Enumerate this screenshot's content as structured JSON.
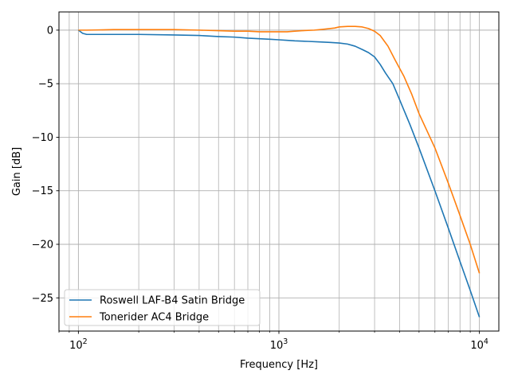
{
  "chart_data": {
    "type": "line",
    "title": "",
    "xlabel": "Frequency [Hz]",
    "ylabel": "Gain [dB]",
    "xscale": "log",
    "xlim": [
      80,
      12500
    ],
    "ylim": [
      -28.1,
      1.7
    ],
    "grid": true,
    "legend_position": "lower-left",
    "x_ticks": [
      {
        "value": 100,
        "base": "10",
        "exp": "2"
      },
      {
        "value": 1000,
        "base": "10",
        "exp": "3"
      },
      {
        "value": 10000,
        "base": "10",
        "exp": "4"
      }
    ],
    "y_ticks": [
      {
        "value": 0,
        "label": "0"
      },
      {
        "value": -5,
        "label": "−5"
      },
      {
        "value": -10,
        "label": "−10"
      },
      {
        "value": -15,
        "label": "−15"
      },
      {
        "value": -20,
        "label": "−20"
      },
      {
        "value": -25,
        "label": "−25"
      }
    ],
    "series": [
      {
        "name": "Roswell LAF-B4 Satin Bridge",
        "color": "#1f77b4",
        "x": [
          100,
          105,
          110,
          120,
          150,
          200,
          300,
          400,
          500,
          600,
          700,
          800,
          900,
          1000,
          1100,
          1200,
          1400,
          1600,
          1800,
          2000,
          2200,
          2400,
          2600,
          2800,
          3000,
          3200,
          3400,
          3700,
          4000,
          4500,
          5000,
          6000,
          7000,
          8000,
          9000,
          10000
        ],
        "y": [
          0.0,
          -0.3,
          -0.4,
          -0.4,
          -0.4,
          -0.4,
          -0.45,
          -0.5,
          -0.6,
          -0.65,
          -0.75,
          -0.8,
          -0.85,
          -0.9,
          -0.95,
          -1.0,
          -1.05,
          -1.1,
          -1.15,
          -1.2,
          -1.3,
          -1.5,
          -1.8,
          -2.1,
          -2.5,
          -3.2,
          -4.0,
          -5.0,
          -6.5,
          -8.8,
          -11.0,
          -15.0,
          -18.5,
          -21.6,
          -24.3,
          -26.8
        ]
      },
      {
        "name": "Tonerider AC4 Bridge",
        "color": "#ff7f0e",
        "x": [
          100,
          110,
          150,
          200,
          300,
          400,
          500,
          600,
          700,
          800,
          900,
          1000,
          1100,
          1200,
          1300,
          1500,
          1700,
          1900,
          2000,
          2200,
          2400,
          2600,
          2800,
          3000,
          3200,
          3500,
          3800,
          4200,
          4600,
          5000,
          6000,
          7000,
          8000,
          9000,
          10000
        ],
        "y": [
          0.0,
          0.0,
          0.05,
          0.05,
          0.05,
          0.0,
          -0.05,
          -0.1,
          -0.1,
          -0.15,
          -0.15,
          -0.15,
          -0.15,
          -0.1,
          -0.05,
          0.0,
          0.1,
          0.2,
          0.3,
          0.35,
          0.35,
          0.3,
          0.15,
          -0.1,
          -0.5,
          -1.5,
          -2.8,
          -4.3,
          -6.0,
          -7.8,
          -11.0,
          -14.3,
          -17.3,
          -20.0,
          -22.7
        ]
      }
    ]
  }
}
